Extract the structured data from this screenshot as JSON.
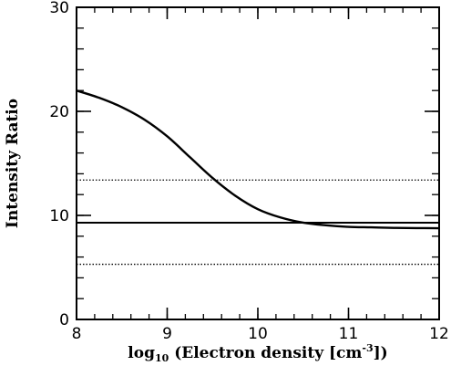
{
  "chart_data": {
    "type": "line",
    "title": "",
    "xlabel": {
      "prefix": "log",
      "subscript": "10",
      "main": " (Electron density [cm",
      "superscript": "-3",
      "suffix": "])"
    },
    "ylabel": "Intensity Ratio",
    "xlim": [
      8,
      12
    ],
    "ylim": [
      0,
      30
    ],
    "x_ticks": [
      8,
      9,
      10,
      11,
      12
    ],
    "y_ticks": [
      0,
      10,
      20,
      30
    ],
    "x_ticks_labels": [
      "8",
      "9",
      "10",
      "11",
      "12"
    ],
    "y_ticks_labels": [
      "0",
      "10",
      "20",
      "30"
    ],
    "x_minor_step": 0.2,
    "y_minor_step": 2,
    "grid": false,
    "series": [
      {
        "style": "solid",
        "x": [
          8.0,
          8.25,
          8.5,
          8.75,
          9.0,
          9.25,
          9.5,
          9.75,
          10.0,
          10.25,
          10.5,
          10.75,
          11.0,
          11.25,
          11.5,
          11.75,
          12.0
        ],
        "y": [
          22.0,
          21.3,
          20.4,
          19.2,
          17.6,
          15.6,
          13.6,
          11.9,
          10.6,
          9.8,
          9.3,
          9.05,
          8.9,
          8.85,
          8.8,
          8.78,
          8.77
        ]
      }
    ],
    "hlines": [
      {
        "y": 13.4,
        "style": "dotted"
      },
      {
        "y": 9.3,
        "style": "solid"
      },
      {
        "y": 5.3,
        "style": "dotted"
      }
    ]
  }
}
